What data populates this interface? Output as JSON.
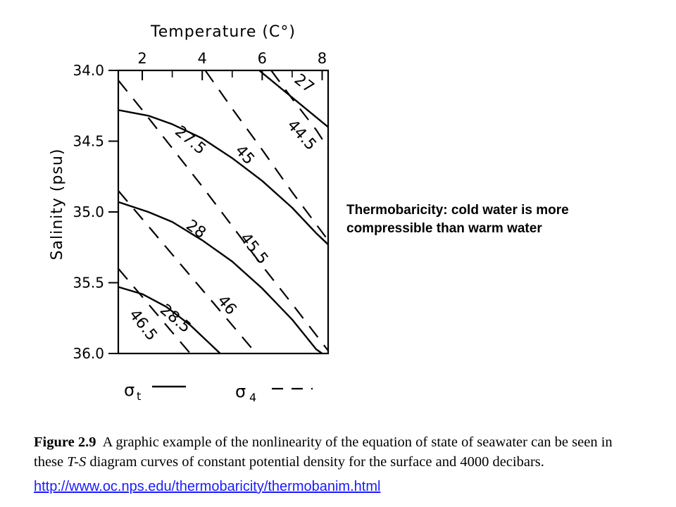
{
  "chart_data": {
    "type": "line",
    "title": "Temperature (C°)",
    "xlabel": "Temperature (C°)",
    "ylabel": "Salinity (psu)",
    "x_ticks": [
      "2",
      "4",
      "6",
      "8"
    ],
    "y_ticks": [
      "34.0",
      "34.5",
      "35.0",
      "35.5",
      "36.0"
    ],
    "xlim": [
      1.2,
      8.2
    ],
    "ylim": [
      36.0,
      34.0
    ],
    "x_axis_position": "top",
    "y_axis_inverted": true,
    "grid": false,
    "series": [
      {
        "name": "27",
        "group": "σt",
        "style": "solid",
        "points": [
          [
            5.9,
            34.0
          ],
          [
            8.2,
            34.4
          ]
        ]
      },
      {
        "name": "27.5",
        "group": "σt",
        "style": "solid",
        "points": [
          [
            1.2,
            34.28
          ],
          [
            2.2,
            34.32
          ],
          [
            3.0,
            34.38
          ],
          [
            4.0,
            34.48
          ],
          [
            5.0,
            34.62
          ],
          [
            6.0,
            34.78
          ],
          [
            7.0,
            34.97
          ],
          [
            7.8,
            35.15
          ],
          [
            8.2,
            35.23
          ]
        ]
      },
      {
        "name": "28",
        "group": "σt",
        "style": "solid",
        "points": [
          [
            1.2,
            34.93
          ],
          [
            2.2,
            35.0
          ],
          [
            3.0,
            35.07
          ],
          [
            4.0,
            35.2
          ],
          [
            5.0,
            35.35
          ],
          [
            6.0,
            35.54
          ],
          [
            7.0,
            35.76
          ],
          [
            7.8,
            35.97
          ],
          [
            8.0,
            36.0
          ]
        ]
      },
      {
        "name": "28.5",
        "group": "σt",
        "style": "solid",
        "points": [
          [
            1.2,
            35.53
          ],
          [
            2.0,
            35.58
          ],
          [
            2.8,
            35.67
          ],
          [
            3.6,
            35.8
          ],
          [
            4.2,
            35.92
          ],
          [
            4.6,
            36.0
          ]
        ]
      },
      {
        "name": "44.5",
        "group": "σ4",
        "style": "dashed",
        "points": [
          [
            6.3,
            34.0
          ],
          [
            7.0,
            34.2
          ],
          [
            7.8,
            34.42
          ],
          [
            8.2,
            34.55
          ]
        ]
      },
      {
        "name": "45",
        "group": "σ4",
        "style": "dashed",
        "points": [
          [
            4.1,
            34.0
          ],
          [
            5.0,
            34.27
          ],
          [
            6.0,
            34.56
          ],
          [
            7.0,
            34.86
          ],
          [
            8.2,
            35.2
          ]
        ]
      },
      {
        "name": "45.5",
        "group": "σ4",
        "style": "dashed",
        "points": [
          [
            1.2,
            34.07
          ],
          [
            2.0,
            34.28
          ],
          [
            3.0,
            34.55
          ],
          [
            4.0,
            34.82
          ],
          [
            5.0,
            35.1
          ],
          [
            6.0,
            35.38
          ],
          [
            7.0,
            35.65
          ],
          [
            8.2,
            35.98
          ]
        ]
      },
      {
        "name": "46",
        "group": "σ4",
        "style": "dashed",
        "points": [
          [
            1.2,
            34.85
          ],
          [
            2.0,
            35.05
          ],
          [
            3.0,
            35.3
          ],
          [
            4.0,
            35.55
          ],
          [
            5.0,
            35.8
          ],
          [
            5.8,
            36.0
          ]
        ]
      },
      {
        "name": "46.5",
        "group": "σ4",
        "style": "dashed",
        "points": [
          [
            1.2,
            35.4
          ],
          [
            2.0,
            35.6
          ],
          [
            3.0,
            35.85
          ],
          [
            3.6,
            36.0
          ]
        ]
      }
    ],
    "legend": [
      {
        "symbol": "σ",
        "sub": "t",
        "style": "solid"
      },
      {
        "symbol": "σ",
        "sub": "4",
        "style": "dashed"
      }
    ],
    "legend_placement": "bottom"
  },
  "annotation": {
    "line1": "Thermobaricity: cold water is more",
    "line2": "compressible than warm water"
  },
  "caption": {
    "label": "Figure 2.9",
    "line1_text": "A graphic example of the nonlinearity of the equation of state of seawater can be seen in",
    "line2_pre": "these ",
    "line2_ts": "T-S",
    "line2_post": " diagram curves of constant potential density for the surface and 4000 decibars."
  },
  "link": {
    "text": "http://www.oc.nps.edu/thermobaricity/thermobanim.html"
  }
}
